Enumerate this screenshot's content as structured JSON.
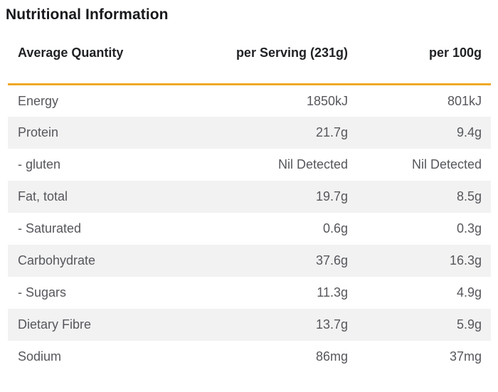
{
  "page_title": "Nutritional Information",
  "colors": {
    "accent_rule": "#F0A827",
    "row_alternate": "#F2F2F2",
    "body_text": "#55575C",
    "heading_text": "#17191C"
  },
  "chart_data": {
    "type": "table",
    "title": "Nutritional Information",
    "columns": [
      "Average Quantity",
      "per Serving (231g)",
      "per 100g"
    ],
    "rows": [
      [
        "Energy",
        "1850kJ",
        "801kJ"
      ],
      [
        "Protein",
        "21.7g",
        "9.4g"
      ],
      [
        "- gluten",
        "Nil Detected",
        "Nil Detected"
      ],
      [
        "Fat, total",
        "19.7g",
        "8.5g"
      ],
      [
        "- Saturated",
        "0.6g",
        "0.3g"
      ],
      [
        "Carbohydrate",
        "37.6g",
        "16.3g"
      ],
      [
        "- Sugars",
        "11.3g",
        "4.9g"
      ],
      [
        "Dietary Fibre",
        "13.7g",
        "5.9g"
      ],
      [
        "Sodium",
        "86mg",
        "37mg"
      ]
    ],
    "layout": {
      "alternating_row_shading": true,
      "header_rule": "3px solid amber under header row",
      "value_alignment": "right",
      "label_alignment": "left"
    }
  }
}
